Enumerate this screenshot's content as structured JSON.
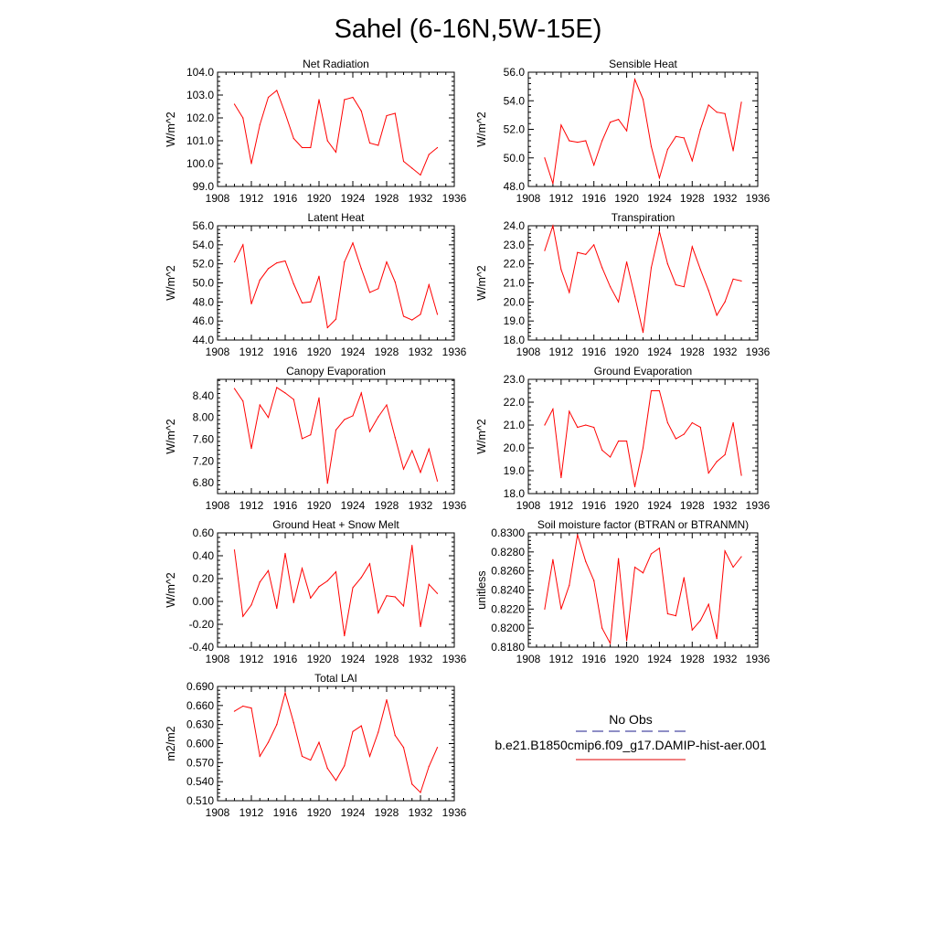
{
  "figure": {
    "title": "Sahel (6-16N,5W-15E)"
  },
  "legend": {
    "entries": [
      {
        "label": "No Obs",
        "color": "#1c1c8c",
        "dash": "dashed"
      },
      {
        "label": "b.e21.B1850cmip6.f09_g17.DAMIP-hist-aer.001",
        "color": "#e00000",
        "dash": "solid"
      }
    ]
  },
  "colors": {
    "series": "#ff0000",
    "axis": "#000000"
  },
  "chart_data": [
    {
      "type": "line",
      "title": "Net Radiation",
      "ylabel": "W/m^2",
      "xlim": [
        1908,
        1936
      ],
      "ylim": [
        99.0,
        104.0
      ],
      "xticks": [
        1908,
        1912,
        1916,
        1920,
        1924,
        1928,
        1932,
        1936
      ],
      "yticks": [
        "99.0",
        "100.0",
        "101.0",
        "102.0",
        "103.0",
        "104.0"
      ],
      "x": [
        1910,
        1911,
        1912,
        1913,
        1914,
        1915,
        1916,
        1917,
        1918,
        1919,
        1920,
        1921,
        1922,
        1923,
        1924,
        1925,
        1926,
        1927,
        1928,
        1929,
        1930,
        1931,
        1932,
        1933,
        1934
      ],
      "series": [
        {
          "values": [
            102.6,
            102.0,
            100.0,
            101.7,
            102.9,
            103.2,
            102.2,
            101.1,
            100.7,
            100.7,
            102.8,
            101.0,
            100.5,
            102.8,
            102.9,
            102.3,
            100.9,
            100.8,
            102.1,
            102.2,
            100.1,
            99.8,
            99.5,
            100.4,
            100.7
          ]
        }
      ]
    },
    {
      "type": "line",
      "title": "Sensible Heat",
      "ylabel": "W/m^2",
      "xlim": [
        1908,
        1936
      ],
      "ylim": [
        48.0,
        56.0
      ],
      "xticks": [
        1908,
        1912,
        1916,
        1920,
        1924,
        1928,
        1932,
        1936
      ],
      "yticks": [
        "48.0",
        "50.0",
        "52.0",
        "54.0",
        "56.0"
      ],
      "x": [
        1910,
        1911,
        1912,
        1913,
        1914,
        1915,
        1916,
        1917,
        1918,
        1919,
        1920,
        1921,
        1922,
        1923,
        1924,
        1925,
        1926,
        1927,
        1928,
        1929,
        1930,
        1931,
        1932,
        1933,
        1934
      ],
      "series": [
        {
          "values": [
            50.0,
            48.2,
            52.3,
            51.2,
            51.1,
            51.2,
            49.5,
            51.2,
            52.5,
            52.7,
            51.9,
            55.5,
            54.1,
            50.8,
            48.6,
            50.6,
            51.5,
            51.4,
            49.8,
            52.0,
            53.7,
            53.2,
            53.1,
            50.5,
            53.9
          ]
        }
      ]
    },
    {
      "type": "line",
      "title": "Latent Heat",
      "ylabel": "W/m^2",
      "xlim": [
        1908,
        1936
      ],
      "ylim": [
        44.0,
        56.0
      ],
      "xticks": [
        1908,
        1912,
        1916,
        1920,
        1924,
        1928,
        1932,
        1936
      ],
      "yticks": [
        "44.0",
        "46.0",
        "48.0",
        "50.0",
        "52.0",
        "54.0",
        "56.0"
      ],
      "x": [
        1910,
        1911,
        1912,
        1913,
        1914,
        1915,
        1916,
        1917,
        1918,
        1919,
        1920,
        1921,
        1922,
        1923,
        1924,
        1925,
        1926,
        1927,
        1928,
        1929,
        1930,
        1931,
        1932,
        1933,
        1934
      ],
      "series": [
        {
          "values": [
            52.2,
            54.0,
            47.8,
            50.3,
            51.5,
            52.1,
            52.3,
            49.9,
            47.9,
            48.0,
            50.7,
            45.3,
            46.2,
            52.2,
            54.2,
            51.5,
            49.0,
            49.4,
            52.2,
            50.1,
            46.5,
            46.1,
            46.7,
            49.8,
            46.7
          ]
        }
      ]
    },
    {
      "type": "line",
      "title": "Transpiration",
      "ylabel": "W/m^2",
      "xlim": [
        1908,
        1936
      ],
      "ylim": [
        18.0,
        24.0
      ],
      "xticks": [
        1908,
        1912,
        1916,
        1920,
        1924,
        1928,
        1932,
        1936
      ],
      "yticks": [
        "18.0",
        "19.0",
        "20.0",
        "21.0",
        "22.0",
        "23.0",
        "24.0"
      ],
      "x": [
        1910,
        1911,
        1912,
        1913,
        1914,
        1915,
        1916,
        1917,
        1918,
        1919,
        1920,
        1921,
        1922,
        1923,
        1924,
        1925,
        1926,
        1927,
        1928,
        1929,
        1930,
        1931,
        1932,
        1933,
        1934
      ],
      "series": [
        {
          "values": [
            22.7,
            24.0,
            21.7,
            20.5,
            22.6,
            22.5,
            23.0,
            21.8,
            20.8,
            20.0,
            22.1,
            20.3,
            18.4,
            21.8,
            23.7,
            22.0,
            20.9,
            20.8,
            22.9,
            21.7,
            20.6,
            19.3,
            20.0,
            21.2,
            21.1
          ]
        }
      ]
    },
    {
      "type": "line",
      "title": "Canopy Evaporation",
      "ylabel": "W/m^2",
      "xlim": [
        1908,
        1936
      ],
      "ylim": [
        6.6,
        8.7
      ],
      "xticks": [
        1908,
        1912,
        1916,
        1920,
        1924,
        1928,
        1932,
        1936
      ],
      "yticks": [
        "6.80",
        "7.20",
        "7.60",
        "8.00",
        "8.40"
      ],
      "x": [
        1910,
        1911,
        1912,
        1913,
        1914,
        1915,
        1916,
        1917,
        1918,
        1919,
        1920,
        1921,
        1922,
        1923,
        1924,
        1925,
        1926,
        1927,
        1928,
        1929,
        1930,
        1931,
        1932,
        1933,
        1934
      ],
      "series": [
        {
          "values": [
            8.53,
            8.3,
            7.43,
            8.23,
            8.0,
            8.55,
            8.45,
            8.33,
            7.61,
            7.68,
            8.36,
            6.79,
            7.77,
            7.96,
            8.03,
            8.45,
            7.74,
            8.01,
            8.23,
            7.63,
            7.05,
            7.39,
            6.99,
            7.42,
            6.83
          ]
        }
      ]
    },
    {
      "type": "line",
      "title": "Ground Evaporation",
      "ylabel": "W/m^2",
      "xlim": [
        1908,
        1936
      ],
      "ylim": [
        18.0,
        23.0
      ],
      "xticks": [
        1908,
        1912,
        1916,
        1920,
        1924,
        1928,
        1932,
        1936
      ],
      "yticks": [
        "18.0",
        "19.0",
        "20.0",
        "21.0",
        "22.0",
        "23.0"
      ],
      "x": [
        1910,
        1911,
        1912,
        1913,
        1914,
        1915,
        1916,
        1917,
        1918,
        1919,
        1920,
        1921,
        1922,
        1923,
        1924,
        1925,
        1926,
        1927,
        1928,
        1929,
        1930,
        1931,
        1932,
        1933,
        1934
      ],
      "series": [
        {
          "values": [
            21.0,
            21.7,
            18.7,
            21.6,
            20.9,
            21.0,
            20.9,
            19.9,
            19.6,
            20.3,
            20.3,
            18.3,
            20.0,
            22.5,
            22.5,
            21.1,
            20.4,
            20.6,
            21.1,
            20.9,
            18.9,
            19.4,
            19.7,
            21.1,
            18.8
          ]
        }
      ]
    },
    {
      "type": "line",
      "title": "Ground Heat + Snow Melt",
      "ylabel": "W/m^2",
      "xlim": [
        1908,
        1936
      ],
      "ylim": [
        -0.4,
        0.6
      ],
      "xticks": [
        1908,
        1912,
        1916,
        1920,
        1924,
        1928,
        1932,
        1936
      ],
      "yticks": [
        "-0.40",
        "-0.20",
        "0.00",
        "0.20",
        "0.40",
        "0.60"
      ],
      "x": [
        1910,
        1911,
        1912,
        1913,
        1914,
        1915,
        1916,
        1917,
        1918,
        1919,
        1920,
        1921,
        1922,
        1923,
        1924,
        1925,
        1926,
        1927,
        1928,
        1929,
        1930,
        1931,
        1932,
        1933,
        1934
      ],
      "series": [
        {
          "values": [
            0.45,
            -0.13,
            -0.03,
            0.17,
            0.27,
            -0.06,
            0.42,
            -0.01,
            0.29,
            0.03,
            0.13,
            0.18,
            0.26,
            -0.3,
            0.12,
            0.21,
            0.33,
            -0.1,
            0.05,
            0.04,
            -0.04,
            0.49,
            -0.22,
            0.15,
            0.07
          ]
        }
      ]
    },
    {
      "type": "line",
      "title": "Soil moisture factor (BTRAN or BTRANMN)",
      "ylabel": "unitless",
      "xlim": [
        1908,
        1936
      ],
      "ylim": [
        0.818,
        0.83
      ],
      "xticks": [
        1908,
        1912,
        1916,
        1920,
        1924,
        1928,
        1932,
        1936
      ],
      "yticks": [
        "0.8180",
        "0.8200",
        "0.8220",
        "0.8240",
        "0.8260",
        "0.8280",
        "0.8300"
      ],
      "x": [
        1910,
        1911,
        1912,
        1913,
        1914,
        1915,
        1916,
        1917,
        1918,
        1919,
        1920,
        1921,
        1922,
        1923,
        1924,
        1925,
        1926,
        1927,
        1928,
        1929,
        1930,
        1931,
        1932,
        1933,
        1934
      ],
      "series": [
        {
          "values": [
            0.822,
            0.8272,
            0.822,
            0.8245,
            0.8298,
            0.827,
            0.825,
            0.82,
            0.8184,
            0.8273,
            0.8187,
            0.8264,
            0.8258,
            0.8278,
            0.8284,
            0.8215,
            0.8213,
            0.8253,
            0.8198,
            0.8208,
            0.8225,
            0.8189,
            0.8281,
            0.8264,
            0.8275
          ]
        }
      ]
    },
    {
      "type": "line",
      "title": "Total LAI",
      "ylabel": "m2/m2",
      "xlim": [
        1908,
        1936
      ],
      "ylim": [
        0.51,
        0.69
      ],
      "xticks": [
        1908,
        1912,
        1916,
        1920,
        1924,
        1928,
        1932,
        1936
      ],
      "yticks": [
        "0.510",
        "0.540",
        "0.570",
        "0.600",
        "0.630",
        "0.660",
        "0.690"
      ],
      "x": [
        1910,
        1911,
        1912,
        1913,
        1914,
        1915,
        1916,
        1917,
        1918,
        1919,
        1920,
        1921,
        1922,
        1923,
        1924,
        1925,
        1926,
        1927,
        1928,
        1929,
        1930,
        1931,
        1932,
        1933,
        1934
      ],
      "series": [
        {
          "values": [
            0.651,
            0.659,
            0.656,
            0.58,
            0.602,
            0.63,
            0.68,
            0.633,
            0.58,
            0.574,
            0.602,
            0.561,
            0.542,
            0.565,
            0.619,
            0.628,
            0.58,
            0.618,
            0.669,
            0.613,
            0.594,
            0.536,
            0.523,
            0.564,
            0.594
          ]
        }
      ]
    }
  ]
}
